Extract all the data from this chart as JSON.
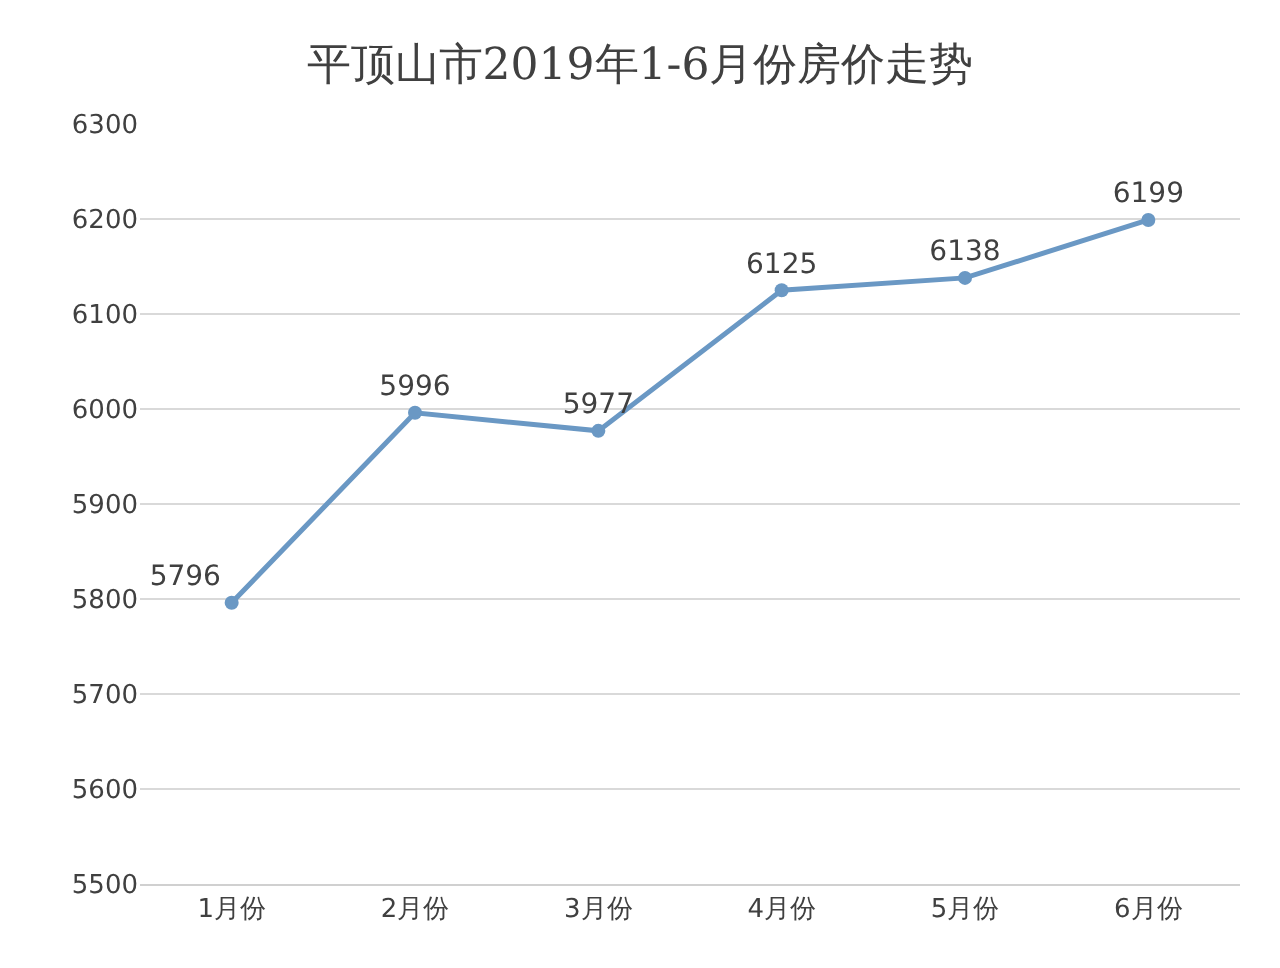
{
  "chart_data": {
    "type": "line",
    "title": "平顶山市2019年1-6月份房价走势",
    "categories": [
      "1月份",
      "2月份",
      "3月份",
      "4月份",
      "5月份",
      "6月份"
    ],
    "series": [
      {
        "color": "#6a98c4",
        "values": [
          5796,
          5996,
          5977,
          6125,
          6138,
          6199
        ]
      }
    ],
    "ylim": [
      5500,
      6300
    ],
    "yticks": [
      5500,
      5600,
      5700,
      5800,
      5900,
      6000,
      6100,
      6200,
      6300
    ],
    "grid": "y",
    "marker": "circle",
    "line_style": "solid",
    "data_labels": true
  }
}
